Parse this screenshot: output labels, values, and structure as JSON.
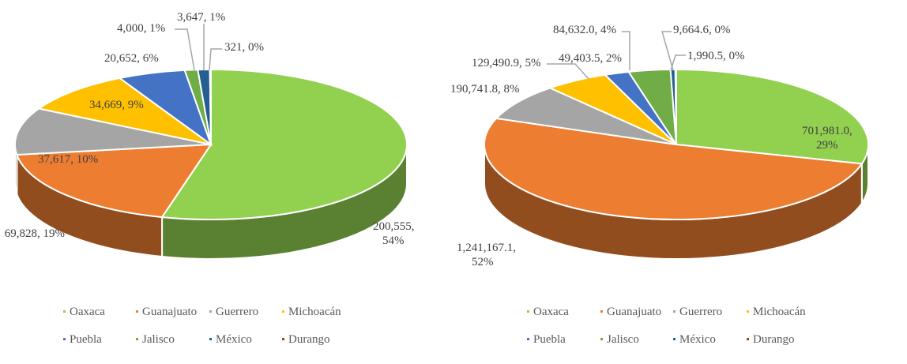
{
  "chart_data": [
    {
      "type": "pie",
      "style": "3d",
      "categories": [
        "Oaxaca",
        "Guanajuato",
        "Guerrero",
        "Michoacán",
        "Puebla",
        "Jalisco",
        "México",
        "Durango"
      ],
      "values": [
        200555,
        69828,
        37617,
        34669,
        20652,
        4000,
        3647,
        321
      ],
      "labels": [
        "200,555,|54%",
        "69,828, 19%",
        "37,617, 10%",
        "34,669, 9%",
        "20,652, 6%",
        "4,000, 1%",
        "3,647, 1%",
        "321, 0%"
      ],
      "legend": "bottom"
    },
    {
      "type": "pie",
      "style": "3d",
      "categories": [
        "Oaxaca",
        "Guanajuato",
        "Guerrero",
        "Michoacán",
        "Puebla",
        "Jalisco",
        "México",
        "Durango"
      ],
      "values": [
        701981.0,
        1241167.1,
        190741.8,
        129490.9,
        49403.5,
        84632.0,
        9664.6,
        1990.5
      ],
      "labels": [
        "701,981.0,|29%",
        "1,241,167.1,|52%",
        "190,741.8, 8%",
        "129,490.9, 5%",
        "49,403.5, 2%",
        "84,632.0, 4%",
        "9,664.6, 0%",
        "1,990.5, 0%"
      ],
      "legend": "bottom"
    }
  ],
  "colors": [
    "#92D050",
    "#ED7D31",
    "#A5A5A5",
    "#FFC000",
    "#4472C4",
    "#70AD47",
    "#255E91",
    "#9E480E"
  ]
}
